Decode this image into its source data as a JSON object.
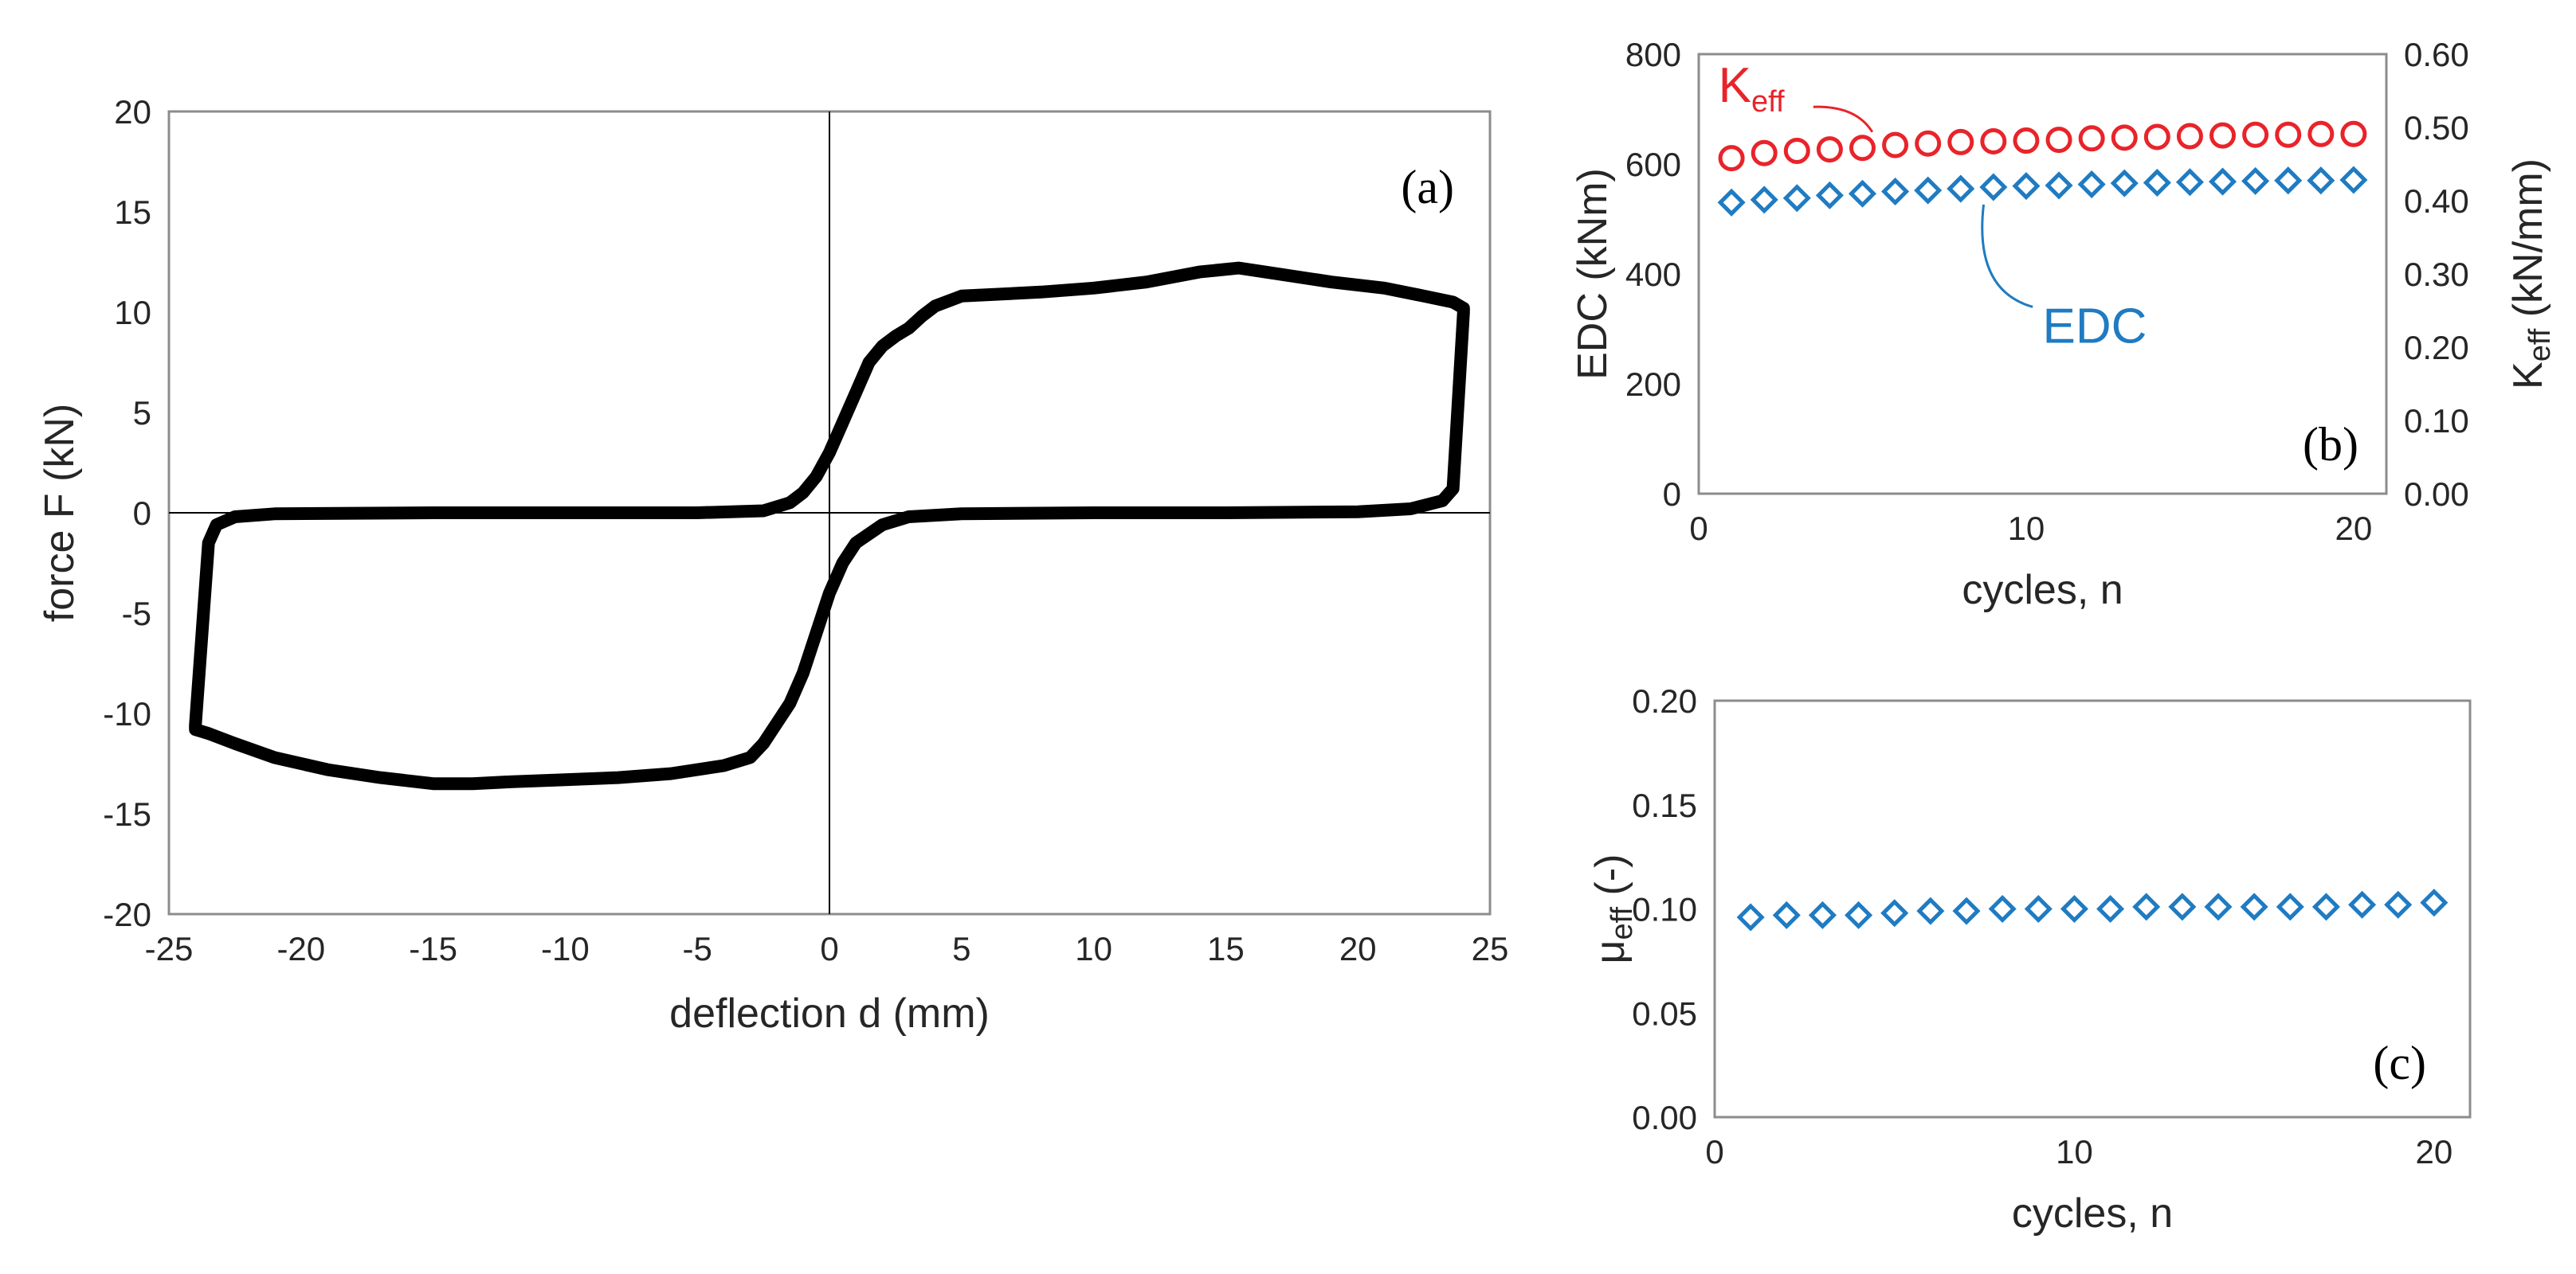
{
  "chart_data": [
    {
      "panel": "(a)",
      "type": "line",
      "xlabel": "deflection d (mm)",
      "ylabel": "force F (kN)",
      "xlim": [
        -25,
        25
      ],
      "ylim": [
        -20,
        20
      ],
      "xticks": [
        "-25",
        "-20",
        "-15",
        "-10",
        "-5",
        "0",
        "5",
        "10",
        "15",
        "20",
        "25"
      ],
      "yticks": [
        "-20",
        "-15",
        "-10",
        "-5",
        "0",
        "5",
        "10",
        "15",
        "20"
      ],
      "grid": false,
      "series": [
        {
          "color": "#000000",
          "x": [
            0,
            0.5,
            1,
            1.5,
            2,
            2.5,
            3,
            3.5,
            4,
            5,
            8,
            10,
            12,
            14,
            15.5,
            17,
            19,
            21,
            22.5,
            23.6,
            24,
            24,
            23.6,
            23.2,
            22,
            20,
            15,
            10,
            5,
            3,
            2,
            1,
            0.5,
            0,
            -0.5,
            -1,
            -1.5,
            -2,
            -2.5,
            -3,
            -4,
            -6,
            -8,
            -10,
            -12,
            -13.5,
            -15,
            -17,
            -19,
            -21,
            -22.5,
            -23.5,
            -24,
            -24,
            -23.5,
            -23.2,
            -22.5,
            -21,
            -15,
            -10,
            -5,
            -2.5,
            -1.5,
            -1,
            -0.5,
            0
          ],
          "y": [
            3,
            4.5,
            6,
            7.5,
            8.3,
            8.8,
            9.2,
            9.8,
            10.3,
            10.8,
            11,
            11.2,
            11.5,
            12,
            12.2,
            11.9,
            11.5,
            11.2,
            10.8,
            10.5,
            10.2,
            10,
            1.2,
            0.6,
            0.2,
            0.05,
            0,
            0,
            -0.05,
            -0.2,
            -0.6,
            -1.5,
            -2.5,
            -4,
            -6,
            -8,
            -9.5,
            -10.5,
            -11.5,
            -12.2,
            -12.6,
            -13,
            -13.2,
            -13.3,
            -13.4,
            -13.5,
            -13.5,
            -13.2,
            -12.8,
            -12.2,
            -11.5,
            -11,
            -10.8,
            -10.6,
            -1.5,
            -0.6,
            -0.2,
            -0.05,
            0,
            0,
            0,
            0.1,
            0.5,
            1,
            1.8,
            3
          ]
        }
      ]
    },
    {
      "panel": "(b)",
      "type": "scatter",
      "xlabel": "cycles, n",
      "ylabel": "EDC (kNm)",
      "y2label_main": "K",
      "y2label_sub": "eff",
      "y2label_unit": " (kN/mm)",
      "xlim": [
        0,
        21
      ],
      "ylim": [
        0,
        800
      ],
      "y2lim": [
        0,
        0.6
      ],
      "xticks": [
        "0",
        "10",
        "20"
      ],
      "yticks": [
        "0",
        "200",
        "400",
        "600",
        "800"
      ],
      "y2ticks": [
        "0.00",
        "0.10",
        "0.20",
        "0.30",
        "0.40",
        "0.50",
        "0.60"
      ],
      "grid": false,
      "series": [
        {
          "name": "K",
          "name_sub": "eff",
          "axis": "right",
          "marker": "circle",
          "color": "#e8242a",
          "x": [
            1,
            2,
            3,
            4,
            5,
            6,
            7,
            8,
            9,
            10,
            11,
            12,
            13,
            14,
            15,
            16,
            17,
            18,
            19,
            20
          ],
          "values": [
            0.458,
            0.465,
            0.468,
            0.47,
            0.472,
            0.476,
            0.478,
            0.48,
            0.481,
            0.482,
            0.483,
            0.485,
            0.486,
            0.487,
            0.488,
            0.489,
            0.49,
            0.49,
            0.491,
            0.491
          ]
        },
        {
          "name": "EDC",
          "axis": "left",
          "marker": "diamond",
          "color": "#1f7bc2",
          "x": [
            1,
            2,
            3,
            4,
            5,
            6,
            7,
            8,
            9,
            10,
            11,
            12,
            13,
            14,
            15,
            16,
            17,
            18,
            19,
            20
          ],
          "values": [
            530,
            535,
            538,
            543,
            546,
            550,
            552,
            555,
            558,
            560,
            561,
            563,
            565,
            566,
            567,
            568,
            569,
            570,
            570,
            571
          ]
        }
      ]
    },
    {
      "panel": "(c)",
      "type": "scatter",
      "xlabel": "cycles, n",
      "ylabel_main": "μ",
      "ylabel_sub": "eff",
      "ylabel_unit": " (-)",
      "xlim": [
        0,
        21
      ],
      "ylim": [
        0,
        0.2
      ],
      "xticks": [
        "0",
        "10",
        "20"
      ],
      "yticks": [
        "0.00",
        "0.05",
        "0.10",
        "0.15",
        "0.20"
      ],
      "grid": false,
      "series": [
        {
          "marker": "diamond",
          "color": "#1f7bc2",
          "x": [
            1,
            2,
            3,
            4,
            5,
            6,
            7,
            8,
            9,
            10,
            11,
            12,
            13,
            14,
            15,
            16,
            17,
            18,
            19,
            20
          ],
          "values": [
            0.096,
            0.097,
            0.097,
            0.097,
            0.098,
            0.099,
            0.099,
            0.1,
            0.1,
            0.1,
            0.1,
            0.101,
            0.101,
            0.101,
            0.101,
            0.101,
            0.101,
            0.102,
            0.102,
            0.103
          ]
        }
      ]
    }
  ]
}
